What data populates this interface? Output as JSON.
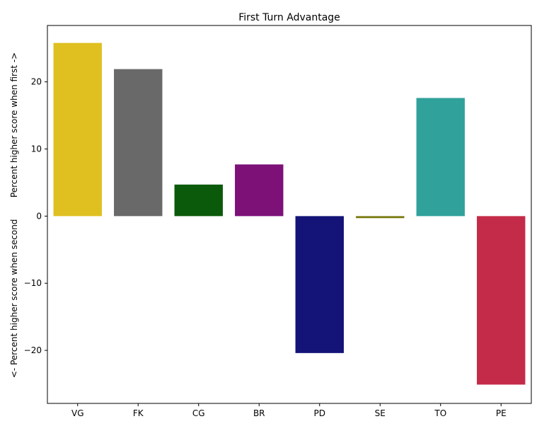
{
  "chart_data": {
    "type": "bar",
    "title": "First Turn Advantage",
    "xlabel": "",
    "ylabel": "<- Percent higher score when second        Percent higher score when first ->",
    "categories": [
      "VG",
      "FK",
      "CG",
      "BR",
      "PD",
      "SE",
      "TO",
      "PE"
    ],
    "values": [
      25.8,
      21.9,
      4.7,
      7.7,
      -20.4,
      -0.3,
      17.6,
      -25.1
    ],
    "colors": [
      "#dfc020",
      "#696969",
      "#0b5a0b",
      "#7d1178",
      "#131378",
      "#7a7a10",
      "#31a19b",
      "#c42b48"
    ],
    "yticks": [
      -20,
      -10,
      0,
      10,
      20
    ],
    "ytick_labels": [
      "−20",
      "−10",
      "0",
      "10",
      "20"
    ],
    "ylim": [
      -27.9,
      28.4
    ],
    "grid": false,
    "legend": "none"
  }
}
